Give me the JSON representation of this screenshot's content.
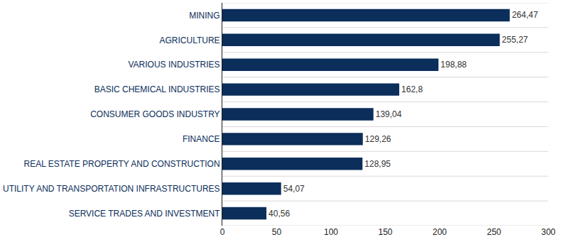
{
  "chart_data": {
    "type": "bar",
    "orientation": "horizontal",
    "categories": [
      "MINING",
      "AGRICULTURE",
      "VARIOUS INDUSTRIES",
      "BASIC CHEMICAL INDUSTRIES",
      "CONSUMER GOODS INDUSTRY",
      "FINANCE",
      "REAL ESTATE PROPERTY AND CONSTRUCTION",
      "UTILITY AND TRANSPORTATION INFRASTRUCTURES",
      "SERVICE TRADES AND INVESTMENT"
    ],
    "values": [
      264.47,
      255.27,
      198.88,
      162.8,
      139.04,
      129.26,
      128.95,
      54.07,
      40.56
    ],
    "value_labels": [
      "264,47",
      "255,27",
      "198,88",
      "162,8",
      "139,04",
      "129,26",
      "128,95",
      "54,07",
      "40,56"
    ],
    "color": "#0b2e5a",
    "xlim": [
      0,
      300
    ],
    "xticks": [
      0,
      50,
      100,
      150,
      200,
      250,
      300
    ],
    "data_labels": true,
    "grid": true
  }
}
